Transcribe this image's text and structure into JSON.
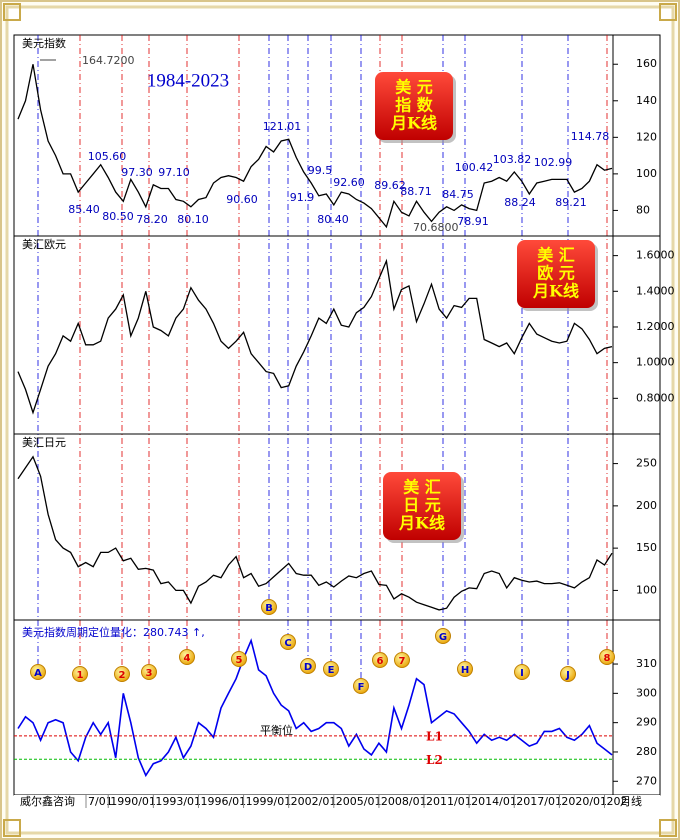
{
  "chart_data": [
    {
      "type": "line",
      "title": "美元指数",
      "subtitle": "1984-2023",
      "badge": [
        "美 元",
        "指 数",
        "月K线"
      ],
      "series": [
        {
          "color": "#000000",
          "values": [
            130,
            140,
            160,
            135,
            118,
            110,
            100,
            100,
            90,
            95,
            100,
            105,
            98,
            90,
            85,
            97,
            90,
            82,
            94,
            92,
            92,
            86,
            85,
            82,
            86,
            87,
            95,
            98,
            99,
            98,
            96,
            104,
            108,
            115,
            112,
            118,
            119,
            109,
            101,
            95,
            88,
            89,
            83,
            90,
            89,
            86,
            84,
            81,
            76,
            71,
            85,
            79,
            77,
            85,
            79,
            74,
            79,
            82,
            80,
            83,
            81,
            80,
            95,
            96,
            98,
            96,
            101,
            96,
            89,
            95,
            96,
            97,
            97,
            97,
            90,
            92,
            96,
            105,
            102,
            103
          ]
        }
      ],
      "annotations": [
        "164.7200",
        "105.60",
        "97.30",
        "97.10",
        "85.40",
        "80.50",
        "78.20",
        "80.10",
        "90.60",
        "121.01",
        "91.9",
        "99.5",
        "92.60",
        "80.40",
        "89.62",
        "88.71",
        "70.6800",
        "84.75",
        "100.42",
        "78.91",
        "103.82",
        "88.24",
        "102.99",
        "89.21",
        "114.78"
      ],
      "ylim": [
        66,
        176
      ],
      "yticks": [
        80,
        100,
        120,
        140,
        160
      ]
    },
    {
      "type": "line",
      "title": "美汇欧元",
      "badge": [
        "美 汇",
        "欧 元",
        "月K线"
      ],
      "series": [
        {
          "color": "#000000",
          "values": [
            0.95,
            0.85,
            0.72,
            0.85,
            0.98,
            1.05,
            1.15,
            1.12,
            1.22,
            1.1,
            1.1,
            1.12,
            1.25,
            1.3,
            1.38,
            1.15,
            1.25,
            1.4,
            1.2,
            1.18,
            1.15,
            1.25,
            1.3,
            1.42,
            1.35,
            1.3,
            1.22,
            1.12,
            1.08,
            1.12,
            1.17,
            1.05,
            1.0,
            0.95,
            0.94,
            0.86,
            0.87,
            0.98,
            1.06,
            1.15,
            1.25,
            1.22,
            1.3,
            1.21,
            1.2,
            1.28,
            1.31,
            1.37,
            1.47,
            1.57,
            1.3,
            1.41,
            1.43,
            1.23,
            1.33,
            1.44,
            1.3,
            1.25,
            1.32,
            1.31,
            1.36,
            1.36,
            1.13,
            1.11,
            1.09,
            1.11,
            1.05,
            1.14,
            1.22,
            1.16,
            1.14,
            1.12,
            1.11,
            1.12,
            1.22,
            1.19,
            1.13,
            1.05,
            1.08,
            1.09
          ]
        }
      ],
      "ylim": [
        0.6,
        1.71
      ],
      "yticks": [
        {
          "value": 0.8,
          "label": "0.8000"
        },
        {
          "value": 1.0,
          "label": "1.0000"
        },
        {
          "value": 1.2,
          "label": "1.2000"
        },
        {
          "value": 1.4,
          "label": "1.4000"
        },
        {
          "value": 1.6,
          "label": "1.6000"
        }
      ]
    },
    {
      "type": "line",
      "title": "美汇日元",
      "badge": [
        "美 汇",
        "日 元",
        "月K线"
      ],
      "series": [
        {
          "color": "#000000",
          "values": [
            232,
            245,
            258,
            235,
            190,
            160,
            150,
            145,
            128,
            133,
            128,
            145,
            145,
            150,
            135,
            138,
            125,
            126,
            124,
            108,
            110,
            100,
            100,
            85,
            105,
            110,
            118,
            115,
            130,
            140,
            115,
            120,
            105,
            108,
            116,
            124,
            132,
            120,
            118,
            118,
            106,
            110,
            104,
            111,
            117,
            115,
            120,
            123,
            107,
            106,
            90,
            96,
            92,
            86,
            83,
            80,
            77,
            79,
            92,
            99,
            103,
            102,
            120,
            123,
            120,
            103,
            115,
            112,
            110,
            111,
            108,
            108,
            109,
            106,
            103,
            110,
            115,
            136,
            130,
            144
          ]
        }
      ],
      "ylim": [
        65,
        285
      ],
      "yticks": [
        100,
        150,
        200,
        250
      ]
    },
    {
      "type": "line",
      "title": "美元指数周期定位量化：280.743 ↑,",
      "series": [
        {
          "color": "#0000ee",
          "values": [
            288,
            292,
            290,
            284,
            290,
            291,
            290,
            280,
            277,
            285,
            290,
            286,
            290,
            278,
            300,
            290,
            278,
            272,
            276,
            277,
            280,
            285,
            278,
            282,
            290,
            288,
            285,
            295,
            300,
            305,
            312,
            318,
            308,
            306,
            300,
            296,
            294,
            288,
            290,
            287,
            288,
            290,
            290,
            288,
            282,
            286,
            281,
            279,
            283,
            280,
            295,
            288,
            296,
            305,
            303,
            290,
            292,
            294,
            293,
            290,
            287,
            283,
            286,
            284,
            285,
            284,
            286,
            284,
            282,
            283,
            287,
            287,
            288,
            285,
            284,
            286,
            289,
            283,
            281,
            279
          ]
        }
      ],
      "levels": [
        {
          "name": "L1",
          "value": 285.5,
          "color": "#dd0000"
        },
        {
          "name": "L2",
          "value": 277.5,
          "color": "#00bb00"
        }
      ],
      "level_label": "平衡位",
      "markers": [
        "A",
        "1",
        "2",
        "3",
        "4",
        "5",
        "B",
        "C",
        "D",
        "E",
        "F",
        "6",
        "7",
        "G",
        "H",
        "I",
        "J",
        "8"
      ],
      "x_labels": [
        "7/01",
        "1990/01",
        "1993/01",
        "1996/01",
        "1999/01",
        "2002/01",
        "2005/01",
        "2008/01",
        "2011/01",
        "2014/01",
        "2017/01",
        "2020/01",
        "202"
      ],
      "source": "威尔鑫咨询",
      "period": "月线",
      "ylim": [
        266,
        324
      ],
      "yticks": [
        270,
        280,
        290,
        300,
        310
      ]
    }
  ]
}
